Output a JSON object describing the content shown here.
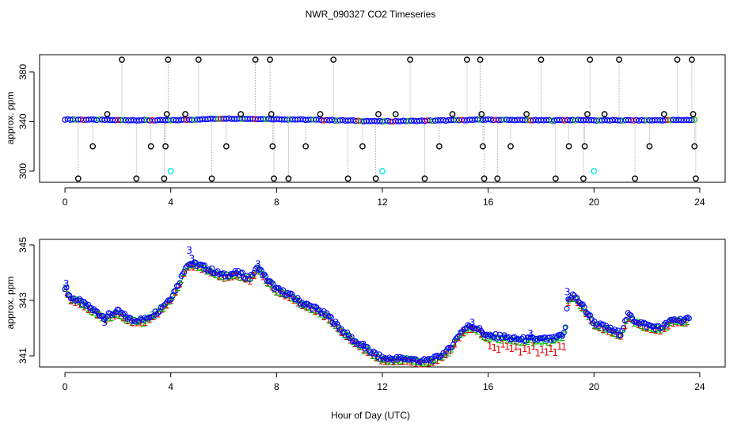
{
  "chart_data": [
    {
      "type": "scatter",
      "title": "NWR_090327  CO2 Timeseries",
      "xlabel": "Hour of Day (UTC)",
      "ylabel": "approx. ppm",
      "xlim": [
        -0.96,
        24.96
      ],
      "ylim": [
        291,
        394
      ],
      "xticks": [
        "0",
        "4",
        "8",
        "12",
        "16",
        "20",
        "24"
      ],
      "yticks": [
        "300",
        "340",
        "380"
      ],
      "baseline_series": {
        "name": "sample CO2",
        "x": [
          0.0,
          2.0,
          4.0,
          6.0,
          8.0,
          10.0,
          11.9,
          12.0,
          14.0,
          15.9,
          16.0,
          18.0,
          19.0,
          19.9,
          20.0,
          22.0,
          23.8
        ],
        "y": [
          341.8,
          341.2,
          341.0,
          342.5,
          342.0,
          341.2,
          340.2,
          340.2,
          340.8,
          341.6,
          341.6,
          341.0,
          341.2,
          341.2,
          341.0,
          341.0,
          341.4
        ]
      },
      "spike_series": {
        "name": "spikes",
        "points": [
          [
            0.5,
            294
          ],
          [
            1.05,
            320
          ],
          [
            1.6,
            346
          ],
          [
            2.15,
            390
          ],
          [
            2.7,
            294
          ],
          [
            3.25,
            320
          ],
          [
            3.75,
            294
          ],
          [
            3.8,
            320
          ],
          [
            3.85,
            346
          ],
          [
            3.9,
            390
          ],
          [
            4.55,
            346
          ],
          [
            5.05,
            390
          ],
          [
            5.55,
            294
          ],
          [
            6.1,
            320
          ],
          [
            6.65,
            346
          ],
          [
            7.2,
            390
          ],
          [
            7.75,
            390
          ],
          [
            7.8,
            346
          ],
          [
            7.85,
            320
          ],
          [
            7.9,
            294
          ],
          [
            8.45,
            294
          ],
          [
            9.1,
            320
          ],
          [
            9.65,
            346
          ],
          [
            10.15,
            390
          ],
          [
            10.7,
            294
          ],
          [
            11.25,
            320
          ],
          [
            11.75,
            294
          ],
          [
            11.85,
            346
          ],
          [
            12.5,
            346
          ],
          [
            13.05,
            390
          ],
          [
            13.6,
            294
          ],
          [
            14.15,
            320
          ],
          [
            14.65,
            346
          ],
          [
            15.2,
            390
          ],
          [
            15.7,
            390
          ],
          [
            15.75,
            346
          ],
          [
            15.8,
            320
          ],
          [
            15.85,
            294
          ],
          [
            16.35,
            294
          ],
          [
            16.85,
            320
          ],
          [
            17.45,
            346
          ],
          [
            18.0,
            390
          ],
          [
            18.55,
            294
          ],
          [
            19.05,
            320
          ],
          [
            19.6,
            294
          ],
          [
            19.65,
            320
          ],
          [
            19.75,
            346
          ],
          [
            19.85,
            390
          ],
          [
            20.4,
            346
          ],
          [
            20.95,
            390
          ],
          [
            21.55,
            294
          ],
          [
            22.1,
            320
          ],
          [
            22.65,
            346
          ],
          [
            23.15,
            390
          ],
          [
            23.7,
            390
          ],
          [
            23.75,
            346
          ],
          [
            23.8,
            320
          ],
          [
            23.85,
            294
          ]
        ]
      },
      "cyan_markers": {
        "x": [
          4.0,
          12.0,
          20.0
        ],
        "y": [
          300,
          300,
          300
        ]
      },
      "colors": {
        "spike": "#000000",
        "series": "#0000ff",
        "cyan": "#00e5ee",
        "green": "#00bb00",
        "red": "#ee0000",
        "line": "#999999"
      }
    },
    {
      "type": "scatter",
      "xlabel": "Hour of Day (UTC)",
      "ylabel": "approx. ppm",
      "xlim": [
        -0.96,
        24.96
      ],
      "ylim": [
        340.6,
        345.2
      ],
      "xticks": [
        "0",
        "4",
        "8",
        "12",
        "16",
        "20",
        "24"
      ],
      "yticks": [
        "341",
        "343",
        "345"
      ],
      "series_keyframes": {
        "x": [
          0.0,
          0.2,
          0.5,
          1.0,
          1.5,
          2.0,
          2.5,
          3.0,
          3.5,
          4.0,
          4.3,
          4.6,
          5.0,
          5.5,
          6.0,
          6.5,
          7.0,
          7.3,
          7.6,
          8.0,
          8.5,
          9.0,
          9.5,
          10.0,
          10.5,
          11.0,
          11.5,
          12.0,
          12.5,
          13.0,
          13.5,
          14.0,
          14.5,
          15.0,
          15.3,
          15.6,
          16.0,
          16.5,
          17.0,
          17.5,
          18.0,
          18.5,
          18.9,
          19.0,
          19.2,
          19.5,
          20.0,
          20.5,
          21.0,
          21.3,
          21.5,
          22.0,
          22.5,
          23.0,
          23.6
        ],
        "y": [
          343.5,
          343.1,
          343.0,
          342.7,
          342.4,
          342.6,
          342.3,
          342.3,
          342.6,
          343.1,
          343.6,
          344.3,
          344.3,
          344.1,
          343.9,
          344.0,
          343.8,
          344.2,
          343.8,
          343.4,
          343.2,
          342.9,
          342.7,
          342.4,
          341.9,
          341.5,
          341.2,
          340.9,
          340.9,
          340.9,
          340.8,
          340.9,
          341.2,
          341.9,
          342.1,
          342.0,
          341.7,
          341.7,
          341.6,
          341.6,
          341.6,
          341.6,
          341.8,
          343.0,
          343.2,
          342.9,
          342.2,
          342.0,
          341.8,
          342.5,
          342.3,
          342.1,
          342.0,
          342.3,
          342.3
        ]
      },
      "markers": {
        "blue": "o",
        "green": "2",
        "red": "1",
        "text_marker": "3"
      },
      "colors": {
        "blue": "#0000ff",
        "green": "#00bb00",
        "red": "#ee0000",
        "text3": "#0000ff"
      }
    }
  ]
}
